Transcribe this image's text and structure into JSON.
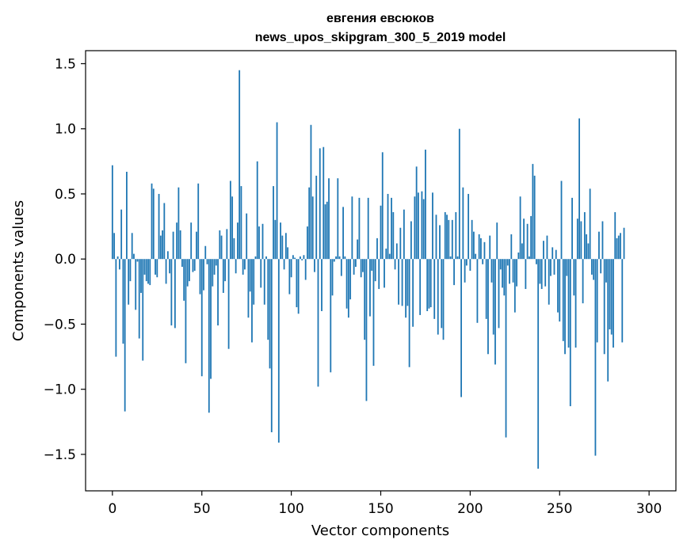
{
  "chart_data": {
    "type": "bar",
    "title": "евгения евсюков",
    "subtitle": "news_upos_skipgram_300_5_2019 model",
    "xlabel": "Vector components",
    "ylabel": "Components values",
    "xlim": [
      -15,
      315
    ],
    "ylim": [
      -1.78,
      1.6
    ],
    "xticks": [
      0,
      50,
      100,
      150,
      200,
      250,
      300
    ],
    "xtick_labels": [
      "0",
      "50",
      "100",
      "150",
      "200",
      "250",
      "300"
    ],
    "yticks": [
      -1.5,
      -1.0,
      -0.5,
      0.0,
      0.5,
      1.0,
      1.5
    ],
    "ytick_labels": [
      "−1.5",
      "−1.0",
      "−0.5",
      "0.0",
      "0.5",
      "1.0",
      "1.5"
    ],
    "bar_color": "#1f77b4",
    "values": [
      0.72,
      0.2,
      -0.75,
      0.02,
      -0.08,
      0.38,
      -0.65,
      -1.17,
      0.67,
      -0.35,
      -0.17,
      0.2,
      0.04,
      -0.39,
      -0.02,
      -0.61,
      -0.26,
      -0.78,
      -0.12,
      -0.17,
      -0.19,
      -0.2,
      0.58,
      0.54,
      -0.12,
      -0.14,
      0.5,
      0.18,
      0.22,
      0.43,
      -0.19,
      0.06,
      -0.11,
      -0.51,
      0.21,
      -0.53,
      0.28,
      0.55,
      0.22,
      -0.06,
      -0.32,
      -0.8,
      -0.21,
      -0.17,
      0.28,
      -0.1,
      -0.09,
      0.21,
      0.58,
      -0.27,
      -0.9,
      -0.24,
      0.1,
      -0.04,
      -1.18,
      -0.92,
      -0.21,
      -0.12,
      -0.05,
      -0.51,
      0.22,
      0.18,
      -0.26,
      -0.17,
      0.23,
      -0.69,
      0.6,
      0.48,
      0.16,
      -0.11,
      0.28,
      1.45,
      0.56,
      -0.12,
      -0.08,
      0.35,
      -0.45,
      -0.25,
      -0.64,
      -0.35,
      0.02,
      0.75,
      0.25,
      -0.22,
      0.27,
      -0.35,
      0.02,
      -0.62,
      -0.84,
      -1.33,
      0.56,
      0.3,
      1.05,
      -1.41,
      0.28,
      0.18,
      -0.08,
      0.2,
      0.09,
      -0.27,
      -0.14,
      0.03,
      0.01,
      -0.37,
      -0.42,
      0.02,
      -0.01,
      0.03,
      -0.16,
      0.25,
      0.55,
      1.03,
      0.48,
      -0.1,
      0.64,
      -0.98,
      0.85,
      -0.4,
      0.86,
      0.42,
      0.44,
      0.62,
      -0.87,
      -0.28,
      -0.02,
      0.02,
      0.62,
      0.02,
      -0.13,
      0.4,
      0.02,
      -0.38,
      -0.45,
      -0.31,
      0.48,
      -0.12,
      -0.06,
      0.15,
      0.47,
      -0.14,
      -0.1,
      -0.62,
      -1.09,
      0.47,
      -0.44,
      -0.09,
      -0.82,
      -0.17,
      0.16,
      -0.23,
      0.41,
      0.82,
      -0.22,
      0.08,
      0.5,
      0.04,
      0.47,
      0.36,
      -0.08,
      0.12,
      -0.35,
      0.24,
      -0.36,
      0.38,
      -0.45,
      -0.36,
      -0.83,
      0.29,
      -0.52,
      0.48,
      0.71,
      0.51,
      -0.43,
      0.52,
      0.46,
      0.84,
      -0.4,
      -0.38,
      -0.37,
      0.51,
      -0.46,
      0.34,
      -0.58,
      0.26,
      -0.53,
      -0.62,
      0.36,
      0.34,
      0.3,
      0.02,
      0.3,
      -0.2,
      0.36,
      0.02,
      1.0,
      -1.06,
      0.55,
      -0.18,
      -0.05,
      0.5,
      -0.09,
      0.3,
      0.21,
      0.04,
      -0.49,
      0.19,
      0.16,
      -0.04,
      0.13,
      -0.46,
      -0.73,
      0.18,
      -0.18,
      -0.58,
      -0.81,
      0.28,
      -0.53,
      -0.08,
      -0.22,
      -0.28,
      -1.37,
      -0.05,
      -0.19,
      0.19,
      -0.18,
      -0.41,
      -0.21,
      0.05,
      0.48,
      0.12,
      0.31,
      -0.23,
      0.27,
      0.02,
      0.33,
      0.73,
      0.64,
      -0.04,
      -1.61,
      -0.19,
      -0.23,
      0.14,
      -0.21,
      0.18,
      -0.35,
      -0.13,
      0.09,
      -0.12,
      0.07,
      -0.41,
      -0.48,
      0.6,
      -0.63,
      -0.73,
      -0.13,
      -0.68,
      -1.13,
      0.47,
      -0.28,
      -0.68,
      0.31,
      1.08,
      0.29,
      -0.34,
      0.36,
      0.19,
      0.12,
      0.54,
      -0.12,
      -0.16,
      -1.51,
      -0.64,
      0.21,
      -0.11,
      0.29,
      -0.73,
      -0.18,
      -0.94,
      -0.54,
      -0.58,
      -0.68,
      0.36,
      0.16,
      0.18,
      0.2,
      -0.64,
      0.24
    ]
  }
}
